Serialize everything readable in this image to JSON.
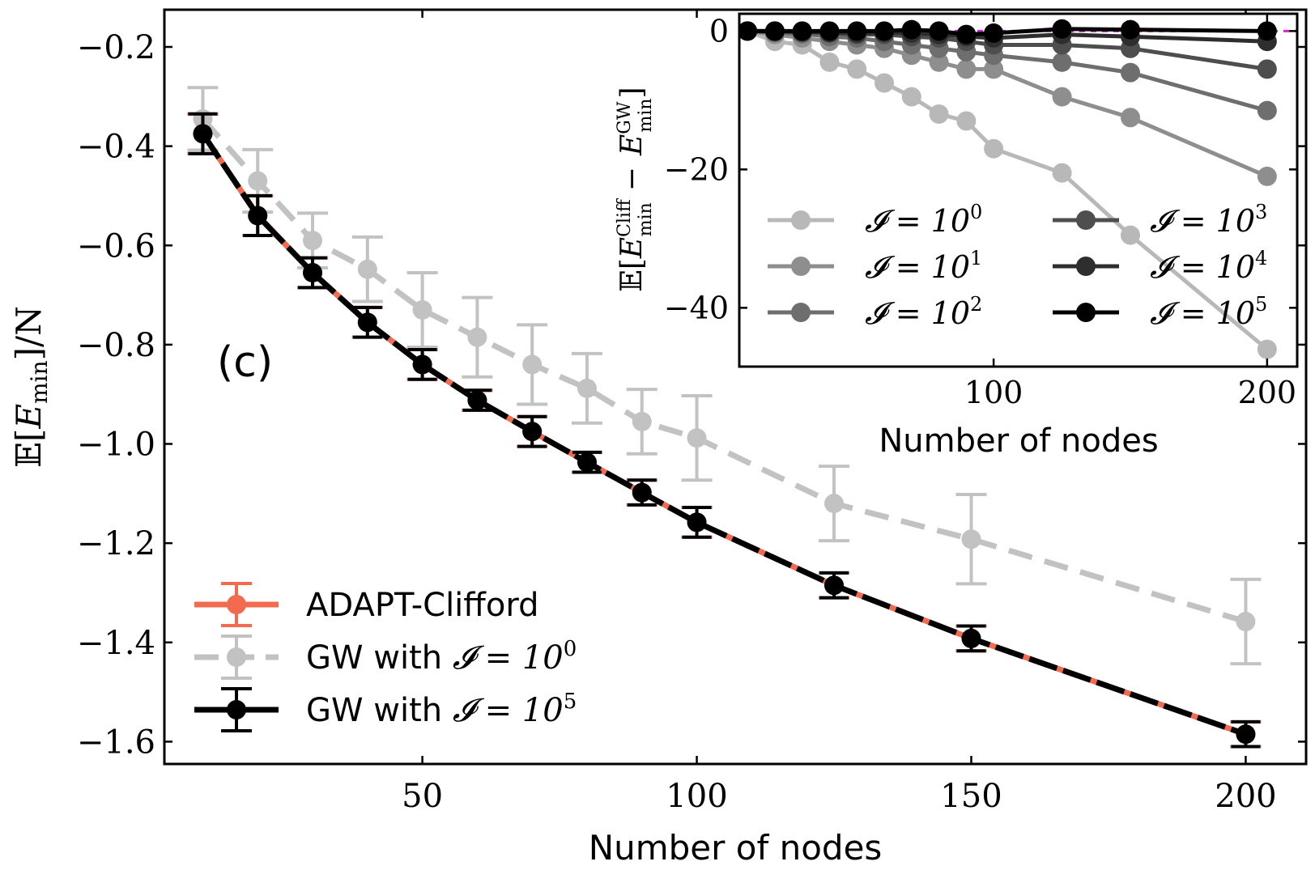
{
  "chart_data": [
    {
      "type": "line",
      "panel_label": "(c)",
      "xlabel": "Number of nodes",
      "ylabel_parts": {
        "op": "𝔼[",
        "var": "E",
        "sub": "min",
        "close": "]/N"
      },
      "xlim": [
        3,
        211
      ],
      "ylim": [
        -1.645,
        -0.125
      ],
      "xticks": [
        50,
        100,
        150,
        200
      ],
      "yticks": [
        -0.2,
        -0.4,
        -0.6,
        -0.8,
        -1.0,
        -1.2,
        -1.4,
        -1.6
      ],
      "ytick_labels": [
        "−0.2",
        "−0.4",
        "−0.6",
        "−0.8",
        "−1.0",
        "−1.2",
        "−1.4",
        "−1.6"
      ],
      "x": [
        10,
        20,
        30,
        40,
        50,
        60,
        70,
        80,
        90,
        100,
        125,
        150,
        200
      ],
      "legend_position": "lower-left",
      "series": [
        {
          "name": "ADAPT-Clifford",
          "color": "#f26b50",
          "style": "solid",
          "values": [
            -0.375,
            -0.54,
            -0.655,
            -0.755,
            -0.84,
            -0.912,
            -0.975,
            -1.037,
            -1.098,
            -1.158,
            -1.285,
            -1.392,
            -1.585
          ],
          "err": [
            0.04,
            0.04,
            0.03,
            0.03,
            0.03,
            0.02,
            0.03,
            0.02,
            0.025,
            0.03,
            0.025,
            0.025,
            0.025
          ]
        },
        {
          "name": "GW with 𝓘 = 10⁰",
          "legend_text": "GW with ",
          "legend_math": "𝓘 = 10",
          "legend_sup": "0",
          "color": "#c2c2c2",
          "style": "dashed",
          "values": [
            -0.345,
            -0.47,
            -0.59,
            -0.648,
            -0.73,
            -0.785,
            -0.84,
            -0.888,
            -0.955,
            -0.988,
            -1.12,
            -1.192,
            -1.358
          ],
          "err": [
            0.063,
            0.063,
            0.055,
            0.065,
            0.075,
            0.08,
            0.08,
            0.07,
            0.065,
            0.085,
            0.075,
            0.09,
            0.085
          ]
        },
        {
          "name": "GW with 𝓘 = 10⁵",
          "legend_text": "GW with ",
          "legend_math": "𝓘 = 10",
          "legend_sup": "5",
          "color": "#000000",
          "style": "solid",
          "values": [
            -0.375,
            -0.54,
            -0.655,
            -0.755,
            -0.84,
            -0.912,
            -0.975,
            -1.037,
            -1.098,
            -1.158,
            -1.285,
            -1.392,
            -1.585
          ],
          "err": [
            0.04,
            0.04,
            0.03,
            0.03,
            0.03,
            0.02,
            0.03,
            0.02,
            0.025,
            0.03,
            0.025,
            0.025,
            0.025
          ]
        }
      ]
    },
    {
      "type": "line",
      "position": "inset-top-right",
      "xlabel": "Number of nodes",
      "ylabel_parts": {
        "op": "𝔼[",
        "var1": "E",
        "sup1": "Cliff",
        "sub1": "min",
        "minus": "−",
        "var2": "E",
        "sup2": "GW",
        "sub2": "min",
        "close": "]"
      },
      "xlim": [
        7,
        211
      ],
      "ylim": [
        -48.5,
        2.5
      ],
      "xticks": [
        100,
        200
      ],
      "yticks": [
        0,
        -20,
        -40
      ],
      "ytick_labels": [
        "0",
        "−20",
        "−40"
      ],
      "reference_line": {
        "y": 0,
        "color": "#e020e0",
        "style": "dotted"
      },
      "x": [
        10,
        20,
        30,
        40,
        50,
        60,
        70,
        80,
        90,
        100,
        125,
        150,
        200
      ],
      "legend_columns": 2,
      "series": [
        {
          "name": "𝓘 = 10⁰",
          "math": "𝓘 = 10",
          "sup": "0",
          "color": "#b8b8b8",
          "values": [
            0,
            -1.5,
            -2.0,
            -4.5,
            -5.5,
            -7.5,
            -9.5,
            -12.0,
            -13.0,
            -17.0,
            -20.5,
            -29.5,
            -46.0
          ]
        },
        {
          "name": "𝓘 = 10¹",
          "math": "𝓘 = 10",
          "sup": "1",
          "color": "#8e8e8e",
          "values": [
            0,
            -0.5,
            -1.0,
            -1.5,
            -2.0,
            -2.5,
            -3.5,
            -4.5,
            -5.5,
            -5.5,
            -9.5,
            -12.5,
            -21.0
          ]
        },
        {
          "name": "𝓘 = 10²",
          "math": "𝓘 = 10",
          "sup": "2",
          "color": "#6e6e6e",
          "values": [
            0,
            -0.2,
            -0.4,
            -0.8,
            -1.0,
            -1.5,
            -2.0,
            -2.5,
            -3.0,
            -3.5,
            -4.5,
            -6.0,
            -11.5
          ]
        },
        {
          "name": "𝓘 = 10³",
          "math": "𝓘 = 10",
          "sup": "3",
          "color": "#4e4e4e",
          "values": [
            0,
            -0.1,
            -0.2,
            -0.3,
            -0.5,
            -0.5,
            -0.8,
            -1.0,
            -1.5,
            -2.0,
            -2.0,
            -2.5,
            -5.5
          ]
        },
        {
          "name": "𝓘 = 10⁴",
          "math": "𝓘 = 10",
          "sup": "4",
          "color": "#2e2e2e",
          "values": [
            0,
            0,
            -0.1,
            -0.2,
            -0.3,
            -0.2,
            -0.3,
            -0.5,
            -0.8,
            -1.0,
            -0.5,
            -0.8,
            -1.5
          ]
        },
        {
          "name": "𝓘 = 10⁵",
          "math": "𝓘 = 10",
          "sup": "5",
          "color": "#000000",
          "values": [
            0,
            0,
            0,
            0,
            0,
            0,
            0.2,
            0,
            -0.5,
            -0.3,
            0.3,
            0.2,
            0.0
          ]
        }
      ]
    }
  ]
}
